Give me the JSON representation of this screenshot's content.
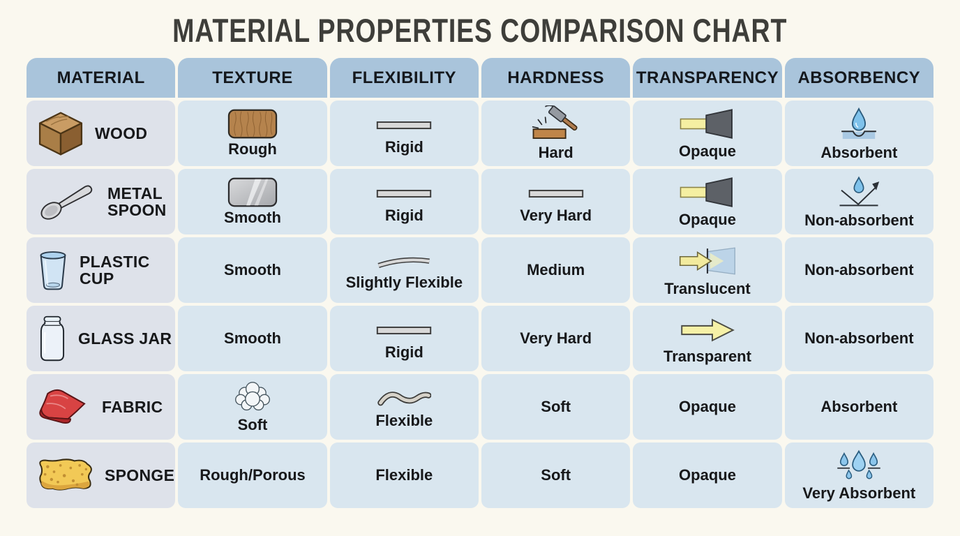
{
  "title": "MATERIAL PROPERTIES COMPARISON CHART",
  "colors": {
    "page_bg": "#faf8ef",
    "header_bg": "#a9c4db",
    "material_cell_bg": "#dee2ea",
    "property_cell_bg": "#d9e6ef",
    "title_text": "#3e3e3a",
    "label_text": "#17181a",
    "light_beam_yellow": "#f5efa2",
    "opaque_block_gray": "#5d6167",
    "water_blue": "#7fc2eb",
    "wood_brown": "#b5834d",
    "fabric_red": "#d84343",
    "sponge_yellow": "#f2c956"
  },
  "chart_data": {
    "type": "table",
    "title": "MATERIAL PROPERTIES COMPARISON CHART",
    "columns": [
      "MATERIAL",
      "TEXTURE",
      "FLEXIBILITY",
      "HARDNESS",
      "TRANSPARENCY",
      "ABSORBENCY"
    ],
    "rows": [
      [
        "WOOD",
        "Rough",
        "Rigid",
        "Hard",
        "Opaque",
        "Absorbent"
      ],
      [
        "METAL SPOON",
        "Smooth",
        "Rigid",
        "Very Hard",
        "Opaque",
        "Non-absorbent"
      ],
      [
        "PLASTIC CUP",
        "Smooth",
        "Slightly Flexible",
        "Medium",
        "Translucent",
        "Non-absorbent"
      ],
      [
        "GLASS JAR",
        "Smooth",
        "Rigid",
        "Very Hard",
        "Transparent",
        "Non-absorbent"
      ],
      [
        "FABRIC",
        "Soft",
        "Flexible",
        "Soft",
        "Opaque",
        "Absorbent"
      ],
      [
        "SPONGE",
        "Rough/Porous",
        "Flexible",
        "Soft",
        "Opaque",
        "Very Absorbent"
      ]
    ]
  },
  "table": {
    "headers": [
      "MATERIAL",
      "TEXTURE",
      "FLEXIBILITY",
      "HARDNESS",
      "TRANSPARENCY",
      "ABSORBENCY"
    ],
    "rows": [
      {
        "material": {
          "label": "WOOD",
          "icon": "wood-cube"
        },
        "texture": {
          "label": "Rough",
          "icon": "wood-grain-swatch"
        },
        "flexibility": {
          "label": "Rigid",
          "icon": "rigid-bar"
        },
        "hardness": {
          "label": "Hard",
          "icon": "hammer-plank"
        },
        "transparency": {
          "label": "Opaque",
          "icon": "light-blocked"
        },
        "absorbency": {
          "label": "Absorbent",
          "icon": "droplet-absorbed"
        }
      },
      {
        "material": {
          "label": "METAL SPOON",
          "icon": "metal-spoon"
        },
        "texture": {
          "label": "Smooth",
          "icon": "metal-swatch"
        },
        "flexibility": {
          "label": "Rigid",
          "icon": "rigid-bar"
        },
        "hardness": {
          "label": "Very Hard",
          "icon": "rigid-bar"
        },
        "transparency": {
          "label": "Opaque",
          "icon": "light-blocked"
        },
        "absorbency": {
          "label": "Non-absorbent",
          "icon": "droplet-bounce"
        }
      },
      {
        "material": {
          "label": "PLASTIC CUP",
          "icon": "plastic-cup"
        },
        "texture": {
          "label": "Smooth",
          "icon": null
        },
        "flexibility": {
          "label": "Slightly Flexible",
          "icon": "curved-bar"
        },
        "hardness": {
          "label": "Medium",
          "icon": null
        },
        "transparency": {
          "label": "Translucent",
          "icon": "light-partial"
        },
        "absorbency": {
          "label": "Non-absorbent",
          "icon": null
        }
      },
      {
        "material": {
          "label": "GLASS JAR",
          "icon": "glass-jar"
        },
        "texture": {
          "label": "Smooth",
          "icon": null
        },
        "flexibility": {
          "label": "Rigid",
          "icon": "rigid-bar"
        },
        "hardness": {
          "label": "Very Hard",
          "icon": null
        },
        "transparency": {
          "label": "Transparent",
          "icon": "light-passes"
        },
        "absorbency": {
          "label": "Non-absorbent",
          "icon": null
        }
      },
      {
        "material": {
          "label": "FABRIC",
          "icon": "fabric-cloth"
        },
        "texture": {
          "label": "Soft",
          "icon": "cotton-puff"
        },
        "flexibility": {
          "label": "Flexible",
          "icon": "wavy-bar"
        },
        "hardness": {
          "label": "Soft",
          "icon": null
        },
        "transparency": {
          "label": "Opaque",
          "icon": null
        },
        "absorbency": {
          "label": "Absorbent",
          "icon": null
        }
      },
      {
        "material": {
          "label": "SPONGE",
          "icon": "sponge"
        },
        "texture": {
          "label": "Rough/Porous",
          "icon": null
        },
        "flexibility": {
          "label": "Flexible",
          "icon": null
        },
        "hardness": {
          "label": "Soft",
          "icon": null
        },
        "transparency": {
          "label": "Opaque",
          "icon": null
        },
        "absorbency": {
          "label": "Very Absorbent",
          "icon": "droplets-many"
        }
      }
    ]
  }
}
